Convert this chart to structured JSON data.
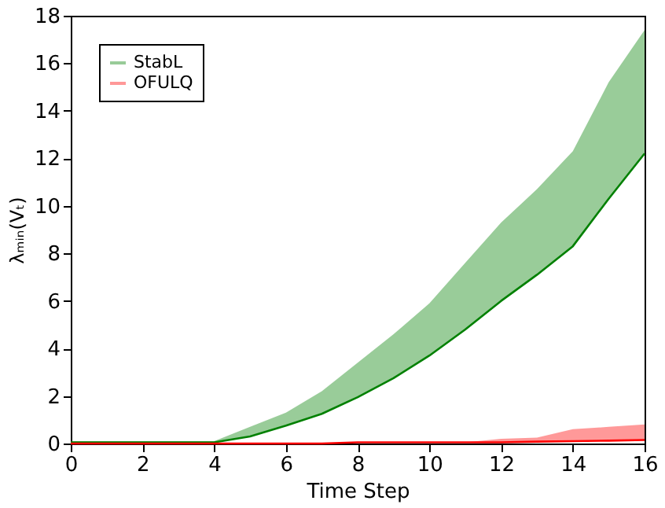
{
  "chart_data": {
    "type": "line",
    "xlabel": "Time Step",
    "ylabel": "λₘᵢₙ(Vₜ)",
    "x": [
      0,
      1,
      2,
      3,
      4,
      5,
      6,
      7,
      8,
      9,
      10,
      11,
      12,
      13,
      14,
      15,
      16
    ],
    "series": [
      {
        "name": "StabL",
        "color": "#008000",
        "values": [
          0.05,
          0.05,
          0.05,
          0.05,
          0.05,
          0.3,
          0.75,
          1.25,
          1.95,
          2.75,
          3.7,
          4.8,
          6.0,
          7.1,
          8.3,
          10.3,
          12.2
        ],
        "lower": [
          0.05,
          0.05,
          0.05,
          0.05,
          0.05,
          0.3,
          0.75,
          1.25,
          1.95,
          2.75,
          3.7,
          4.8,
          6.0,
          7.1,
          8.3,
          10.3,
          12.2
        ],
        "upper": [
          0.1,
          0.1,
          0.1,
          0.1,
          0.1,
          0.7,
          1.3,
          2.2,
          3.4,
          4.6,
          5.9,
          7.6,
          9.3,
          10.7,
          12.3,
          15.2,
          17.4
        ]
      },
      {
        "name": "OFULQ",
        "color": "#ff0000",
        "values": [
          0,
          0,
          0,
          0,
          0,
          0,
          0,
          0,
          0.05,
          0.05,
          0.05,
          0.05,
          0.05,
          0.08,
          0.1,
          0.12,
          0.15
        ],
        "lower": [
          0,
          0,
          0,
          0,
          0,
          0,
          0,
          0,
          0.05,
          0.05,
          0.05,
          0.05,
          0.05,
          0.08,
          0.1,
          0.12,
          0.15
        ],
        "upper": [
          0,
          0,
          0,
          0,
          0,
          0,
          0,
          0,
          0.05,
          0.05,
          0.05,
          0.05,
          0.2,
          0.25,
          0.6,
          0.7,
          0.8
        ]
      }
    ],
    "xlim": [
      0,
      16
    ],
    "xticks": [
      0,
      2,
      4,
      6,
      8,
      10,
      12,
      14,
      16
    ],
    "ylim": [
      0,
      18
    ],
    "yticks": [
      0,
      2,
      4,
      6,
      8,
      10,
      12,
      14,
      16,
      18
    ],
    "legend": "top left",
    "grid": false,
    "line_style": "solid",
    "marker": "none"
  }
}
